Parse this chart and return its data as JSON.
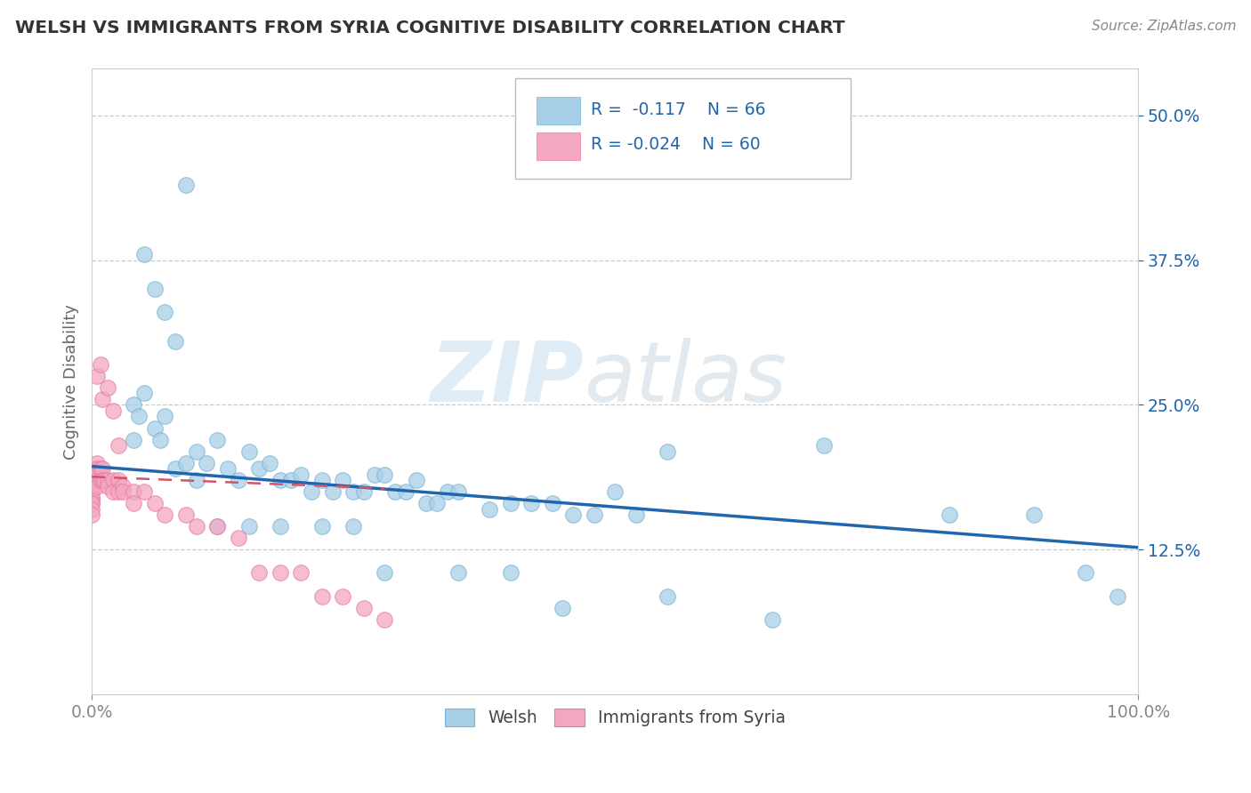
{
  "title": "WELSH VS IMMIGRANTS FROM SYRIA COGNITIVE DISABILITY CORRELATION CHART",
  "source": "Source: ZipAtlas.com",
  "ylabel": "Cognitive Disability",
  "xlim": [
    0.0,
    1.0
  ],
  "ylim": [
    0.0,
    0.54
  ],
  "ytick_labels": [
    "12.5%",
    "25.0%",
    "37.5%",
    "50.0%"
  ],
  "ytick_values": [
    0.125,
    0.25,
    0.375,
    0.5
  ],
  "grid_color": "#cccccc",
  "background_color": "#ffffff",
  "watermark_zip": "ZIP",
  "watermark_atlas": "atlas",
  "blue_scatter_color": "#a8cfe8",
  "blue_scatter_edge": "#7ab3d4",
  "pink_scatter_color": "#f4a7c0",
  "pink_scatter_edge": "#e87aaa",
  "blue_line_color": "#2166ac",
  "pink_line_color": "#d4556a",
  "legend_text_color": "#2166ac",
  "tick_color": "#2166ac",
  "title_color": "#333333",
  "source_color": "#888888",
  "ylabel_color": "#666666",
  "bottom_legend_color": "#444444",
  "blue_line_start_x": 0.0,
  "blue_line_start_y": 0.197,
  "blue_line_end_x": 1.0,
  "blue_line_end_y": 0.127,
  "pink_line_start_x": 0.0,
  "pink_line_start_y": 0.188,
  "pink_line_end_x": 0.28,
  "pink_line_end_y": 0.178,
  "welsh_scatter_x": [
    0.04,
    0.04,
    0.045,
    0.05,
    0.06,
    0.065,
    0.07,
    0.08,
    0.09,
    0.1,
    0.1,
    0.11,
    0.12,
    0.13,
    0.14,
    0.15,
    0.16,
    0.17,
    0.18,
    0.19,
    0.2,
    0.21,
    0.22,
    0.23,
    0.24,
    0.25,
    0.26,
    0.27,
    0.28,
    0.29,
    0.3,
    0.31,
    0.32,
    0.33,
    0.34,
    0.35,
    0.38,
    0.4,
    0.42,
    0.44,
    0.46,
    0.48,
    0.5,
    0.52,
    0.55,
    0.7,
    0.82,
    0.9,
    0.95,
    0.98,
    0.05,
    0.06,
    0.07,
    0.08,
    0.09,
    0.12,
    0.15,
    0.18,
    0.22,
    0.25,
    0.28,
    0.35,
    0.4,
    0.45,
    0.55,
    0.65
  ],
  "welsh_scatter_y": [
    0.22,
    0.25,
    0.24,
    0.26,
    0.23,
    0.22,
    0.24,
    0.195,
    0.2,
    0.21,
    0.185,
    0.2,
    0.22,
    0.195,
    0.185,
    0.21,
    0.195,
    0.2,
    0.185,
    0.185,
    0.19,
    0.175,
    0.185,
    0.175,
    0.185,
    0.175,
    0.175,
    0.19,
    0.19,
    0.175,
    0.175,
    0.185,
    0.165,
    0.165,
    0.175,
    0.175,
    0.16,
    0.165,
    0.165,
    0.165,
    0.155,
    0.155,
    0.175,
    0.155,
    0.21,
    0.215,
    0.155,
    0.155,
    0.105,
    0.085,
    0.38,
    0.35,
    0.33,
    0.305,
    0.44,
    0.145,
    0.145,
    0.145,
    0.145,
    0.145,
    0.105,
    0.105,
    0.105,
    0.075,
    0.085,
    0.065
  ],
  "syria_scatter_x": [
    0.0,
    0.0,
    0.0,
    0.0,
    0.0,
    0.0,
    0.0,
    0.0,
    0.0,
    0.0,
    0.0,
    0.0,
    0.0,
    0.0,
    0.0,
    0.0,
    0.0,
    0.0,
    0.0,
    0.0,
    0.005,
    0.005,
    0.005,
    0.005,
    0.005,
    0.008,
    0.008,
    0.01,
    0.01,
    0.012,
    0.015,
    0.015,
    0.02,
    0.02,
    0.025,
    0.025,
    0.03,
    0.03,
    0.04,
    0.04,
    0.05,
    0.06,
    0.07,
    0.09,
    0.1,
    0.12,
    0.14,
    0.16,
    0.18,
    0.2,
    0.22,
    0.24,
    0.26,
    0.28,
    0.005,
    0.008,
    0.01,
    0.015,
    0.02,
    0.025
  ],
  "syria_scatter_y": [
    0.195,
    0.19,
    0.19,
    0.185,
    0.185,
    0.185,
    0.18,
    0.18,
    0.18,
    0.18,
    0.175,
    0.175,
    0.175,
    0.17,
    0.17,
    0.17,
    0.165,
    0.165,
    0.16,
    0.155,
    0.2,
    0.195,
    0.19,
    0.185,
    0.18,
    0.195,
    0.185,
    0.195,
    0.185,
    0.185,
    0.185,
    0.18,
    0.185,
    0.175,
    0.185,
    0.175,
    0.18,
    0.175,
    0.175,
    0.165,
    0.175,
    0.165,
    0.155,
    0.155,
    0.145,
    0.145,
    0.135,
    0.105,
    0.105,
    0.105,
    0.085,
    0.085,
    0.075,
    0.065,
    0.275,
    0.285,
    0.255,
    0.265,
    0.245,
    0.215
  ]
}
